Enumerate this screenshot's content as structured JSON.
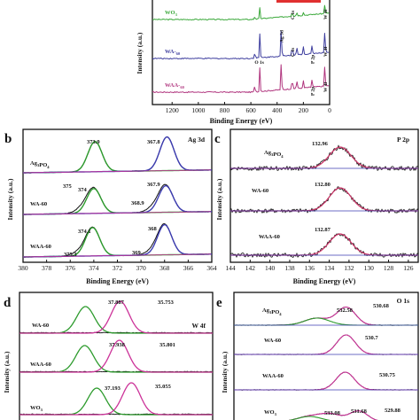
{
  "figure": {
    "panels": [
      {
        "letter": "",
        "title": "",
        "xlabel": "Binding Energy (eV)",
        "ylabel": "Intensity (a.u.)"
      },
      {
        "letter": "b",
        "title": "Ag 3d",
        "xlabel": "Binding Energy (eV)",
        "ylabel": "Intensity (a.u.)"
      },
      {
        "letter": "c",
        "title": "P 2p",
        "xlabel": "Binding Energy (eV)",
        "ylabel": "Intensity (a.u.)"
      },
      {
        "letter": "d",
        "title": "W 4f",
        "xlabel": "",
        "ylabel": "Intensity (a.u.)"
      },
      {
        "letter": "e",
        "title": "O 1s",
        "xlabel": "",
        "ylabel": "Intensity (a.u.)"
      }
    ]
  },
  "chart_data": [
    {
      "type": "line",
      "xlim": [
        1350,
        0
      ],
      "xreversed": true,
      "ticks": [
        1200,
        1000,
        800,
        600,
        400,
        200,
        0
      ],
      "series": [
        {
          "name": "WO3",
          "color": "#3aa83a"
        },
        {
          "name": "WA-60",
          "color": "#3d3d9e"
        },
        {
          "name": "WAA-60",
          "color": "#b0357e"
        }
      ],
      "annotations": [
        "O 1s",
        "Ag 3d",
        "C 1s",
        "P 2p",
        "W 4f"
      ]
    },
    {
      "type": "line",
      "xlim": [
        380,
        364
      ],
      "xreversed": true,
      "ticks": [
        380,
        378,
        376,
        374,
        372,
        370,
        368,
        366,
        364
      ],
      "samples": [
        {
          "name": "Ag3PO4",
          "labels": [
            "373.9",
            "367.8"
          ]
        },
        {
          "name": "WA-60",
          "labels": [
            "375",
            "374",
            "368.9",
            "367.9"
          ]
        },
        {
          "name": "WAA-60",
          "labels": [
            "375.3",
            "374.1",
            "369",
            "368"
          ]
        }
      ]
    },
    {
      "type": "line",
      "xlim": [
        144,
        125
      ],
      "xreversed": true,
      "ticks": [
        144,
        142,
        140,
        138,
        136,
        134,
        132,
        130,
        128,
        126
      ],
      "samples": [
        {
          "name": "Ag3PO4",
          "labels": [
            "132.96"
          ]
        },
        {
          "name": "WA-60",
          "labels": [
            "132.80"
          ]
        },
        {
          "name": "WAA-60",
          "labels": [
            "132.87"
          ]
        }
      ]
    },
    {
      "type": "line",
      "xreversed": true,
      "samples": [
        {
          "name": "WA-60",
          "labels": [
            "37.887",
            "35.753"
          ]
        },
        {
          "name": "WAA-60",
          "labels": [
            "37.938",
            "35.801"
          ]
        },
        {
          "name": "WO3",
          "labels": [
            "37.193",
            "35.055"
          ]
        }
      ]
    },
    {
      "type": "line",
      "xreversed": true,
      "samples": [
        {
          "name": "Ag3PO4",
          "labels": [
            "532.58",
            "530.68"
          ]
        },
        {
          "name": "WA-60",
          "labels": [
            "530.7"
          ]
        },
        {
          "name": "WAA-60",
          "labels": [
            "530.75"
          ]
        },
        {
          "name": "WO3",
          "labels": [
            "533.08",
            "531.68",
            "529.88"
          ]
        }
      ]
    }
  ]
}
